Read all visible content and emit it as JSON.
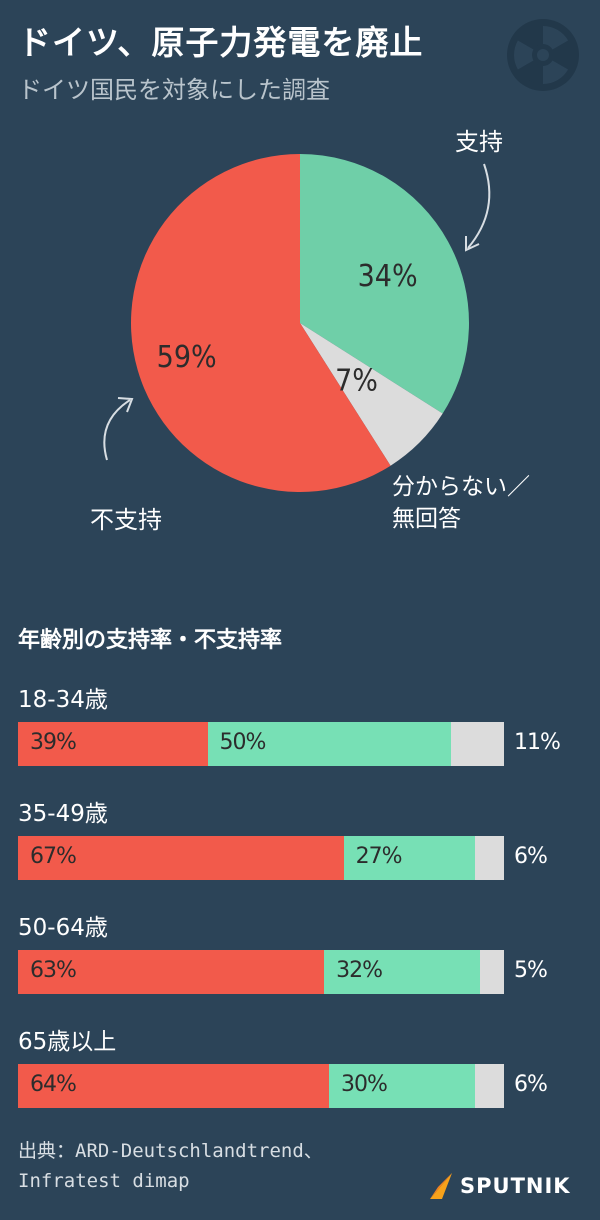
{
  "title": "ドイツ、原子力発電を廃止",
  "subtitle": "ドイツ国民を対象にした調査",
  "colors": {
    "background": "#2c4458",
    "oppose": "#f25a4b",
    "support": "#77e0b5",
    "support_pie": "#6fcfa8",
    "unknown": "#dcdcdc"
  },
  "chart_data": [
    {
      "type": "pie",
      "categories": [
        "支持",
        "不支持",
        "分からない／無回答"
      ],
      "values": [
        34,
        59,
        7
      ],
      "value_labels": [
        "34%",
        "59%",
        "7%"
      ]
    },
    {
      "type": "bar",
      "stacked": true,
      "orientation": "horizontal",
      "title": "年齢別の支持率・不支持率",
      "categories": [
        "18-34歳",
        "35-49歳",
        "50-64歳",
        "65歳以上"
      ],
      "series": [
        {
          "values": [
            39,
            67,
            63,
            64
          ],
          "labels": [
            "39%",
            "67%",
            "63%",
            "64%"
          ]
        },
        {
          "values": [
            50,
            27,
            32,
            30
          ],
          "labels": [
            "50%",
            "27%",
            "32%",
            "30%"
          ]
        },
        {
          "values": [
            11,
            6,
            5,
            6
          ],
          "labels": [
            "11%",
            "6%",
            "5%",
            "6%"
          ]
        }
      ]
    }
  ],
  "pie_labels": {
    "support": "支持",
    "oppose": "不支持",
    "unknown_line1": "分からない／",
    "unknown_line2": "無回答"
  },
  "source": {
    "line1": "出典：ARD-Deutschlandtrend、",
    "line2": "Infratest dimap"
  },
  "brand": "SPUTNIK"
}
